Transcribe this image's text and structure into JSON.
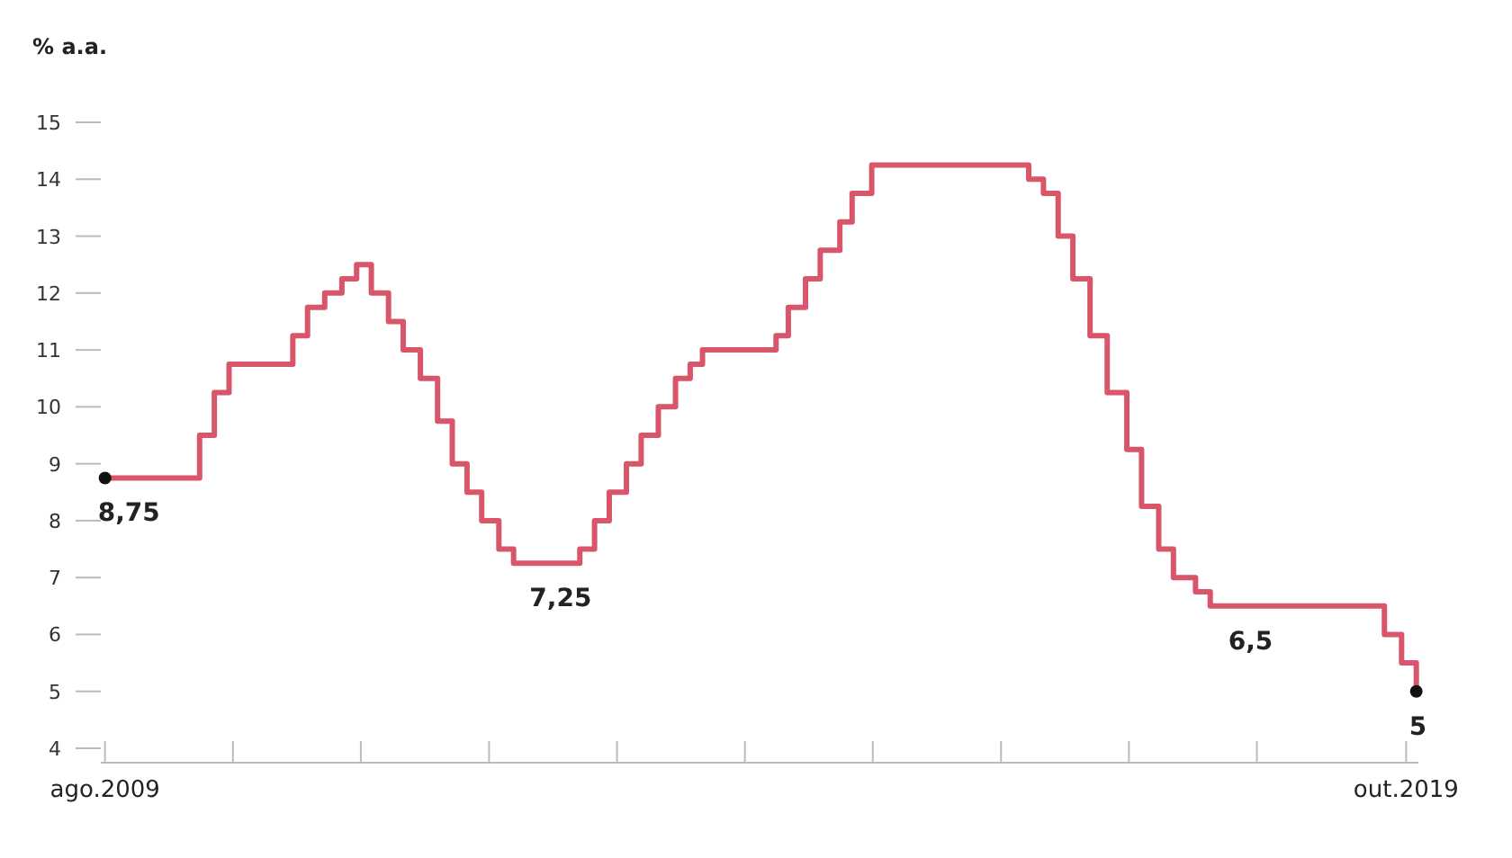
{
  "chart_data": {
    "type": "step",
    "ylabel": "% a.a.",
    "x": [
      "2009-08-01",
      "2010-04-28",
      "2010-06-09",
      "2010-07-21",
      "2011-01-19",
      "2011-03-02",
      "2011-04-20",
      "2011-06-08",
      "2011-07-20",
      "2011-08-31",
      "2011-10-19",
      "2011-11-30",
      "2012-01-18",
      "2012-03-07",
      "2012-04-18",
      "2012-05-30",
      "2012-07-11",
      "2012-08-29",
      "2012-10-10",
      "2013-04-17",
      "2013-05-29",
      "2013-07-10",
      "2013-08-28",
      "2013-10-09",
      "2013-11-27",
      "2014-01-15",
      "2014-02-26",
      "2014-04-02",
      "2014-10-29",
      "2014-12-03",
      "2015-01-21",
      "2015-03-04",
      "2015-04-29",
      "2015-06-03",
      "2015-07-29",
      "2016-10-19",
      "2016-11-30",
      "2017-01-11",
      "2017-02-22",
      "2017-04-12",
      "2017-05-31",
      "2017-07-26",
      "2017-09-06",
      "2017-10-25",
      "2017-12-06",
      "2018-02-07",
      "2018-03-21",
      "2019-07-31",
      "2019-09-18",
      "2019-10-30"
    ],
    "series": [
      {
        "color": "#d9566a",
        "values": [
          8.75,
          9.5,
          10.25,
          10.75,
          11.25,
          11.75,
          12,
          12.25,
          12.5,
          12,
          11.5,
          11,
          10.5,
          9.75,
          9,
          8.5,
          8,
          7.5,
          7.25,
          7.5,
          8,
          8.5,
          9,
          9.5,
          10,
          10.5,
          10.75,
          11,
          11.25,
          11.75,
          12.25,
          12.75,
          13.25,
          13.75,
          14.25,
          14,
          13.75,
          13,
          12.25,
          11.25,
          10.25,
          9.25,
          8.25,
          7.5,
          7,
          6.75,
          6.5,
          6,
          5.5,
          5
        ]
      }
    ],
    "xlim": [
      "2009-07-20",
      "2019-11-05"
    ],
    "xticks": [
      {
        "value": "2009-08-01",
        "label": "ago.2009"
      },
      {
        "value": "2010-08-01",
        "label": null
      },
      {
        "value": "2011-08-01",
        "label": null
      },
      {
        "value": "2012-08-01",
        "label": null
      },
      {
        "value": "2013-08-01",
        "label": null
      },
      {
        "value": "2014-08-01",
        "label": null
      },
      {
        "value": "2015-08-01",
        "label": null
      },
      {
        "value": "2016-08-01",
        "label": null
      },
      {
        "value": "2017-08-01",
        "label": null
      },
      {
        "value": "2018-08-01",
        "label": null
      },
      {
        "value": "2019-10-01",
        "label": "out.2019"
      }
    ],
    "ylim": [
      4,
      15
    ],
    "yticks": [
      4,
      5,
      6,
      7,
      8,
      9,
      10,
      11,
      12,
      13,
      14,
      15
    ],
    "annotations": [
      {
        "text": "8,75",
        "x": "2009-08-01",
        "y": 8.75
      },
      {
        "text": "7,25",
        "x": "2012-12-15",
        "y": 7.25
      },
      {
        "text": "6,5",
        "x": "2018-06-01",
        "y": 6.5
      },
      {
        "text": "5",
        "x": "2019-10-30",
        "y": 5
      }
    ],
    "marker": "none",
    "line_style": "solid"
  }
}
